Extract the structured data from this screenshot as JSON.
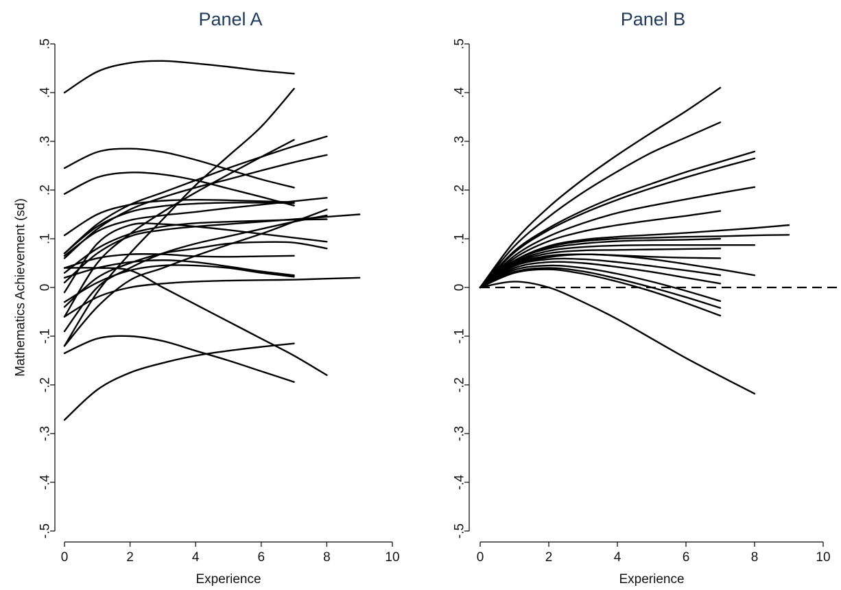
{
  "chart_data": [
    {
      "type": "line",
      "title": "Panel A",
      "xlabel": "Experience",
      "ylabel": "Mathematics Achievement (sd)",
      "xlim": [
        0,
        10
      ],
      "ylim": [
        -0.5,
        0.5
      ],
      "xticks": [
        0,
        2,
        4,
        6,
        8,
        10
      ],
      "xtick_labels": [
        "0",
        "2",
        "4",
        "6",
        "8",
        "10"
      ],
      "yticks": [
        -0.5,
        -0.4,
        -0.3,
        -0.2,
        -0.1,
        0,
        0.1,
        0.2,
        0.3,
        0.4,
        0.5
      ],
      "ytick_labels": [
        "-.5",
        "-.4",
        "-.3",
        "-.2",
        "-.1",
        "0",
        ".1",
        ".2",
        ".3",
        ".4",
        ".5"
      ],
      "grid": false,
      "reference_line": null,
      "series": [
        {
          "x": [
            0,
            1,
            2,
            3,
            4,
            5,
            6,
            7
          ],
          "y": [
            0.4,
            0.443,
            0.461,
            0.465,
            0.46,
            0.453,
            0.445,
            0.439
          ]
        },
        {
          "x": [
            0,
            1,
            2,
            3,
            4,
            5,
            6,
            7
          ],
          "y": [
            0.245,
            0.278,
            0.285,
            0.278,
            0.262,
            0.242,
            0.222,
            0.205
          ]
        },
        {
          "x": [
            0,
            1,
            2,
            3,
            4,
            5,
            6,
            7
          ],
          "y": [
            0.192,
            0.226,
            0.236,
            0.232,
            0.22,
            0.203,
            0.186,
            0.168
          ]
        },
        {
          "x": [
            0,
            1,
            2,
            3,
            4,
            5,
            6,
            7
          ],
          "y": [
            0.107,
            0.15,
            0.17,
            0.178,
            0.18,
            0.179,
            0.177,
            0.175
          ]
        },
        {
          "x": [
            0,
            1,
            2,
            3,
            4,
            5,
            6,
            7
          ],
          "y": [
            0.07,
            0.125,
            0.155,
            0.167,
            0.172,
            0.174,
            0.174,
            0.173
          ]
        },
        {
          "x": [
            0,
            1,
            2,
            3,
            4,
            5,
            6,
            7,
            8
          ],
          "y": [
            0.065,
            0.115,
            0.138,
            0.148,
            0.155,
            0.163,
            0.17,
            0.177,
            0.184
          ]
        },
        {
          "x": [
            0,
            1,
            2,
            3,
            4,
            5,
            6,
            7
          ],
          "y": [
            -0.12,
            -0.01,
            0.07,
            0.14,
            0.21,
            0.27,
            0.33,
            0.408
          ]
        },
        {
          "x": [
            0,
            1,
            2,
            3,
            4,
            5,
            6,
            7
          ],
          "y": [
            -0.06,
            0.05,
            0.11,
            0.155,
            0.195,
            0.232,
            0.268,
            0.303
          ]
        },
        {
          "x": [
            0,
            1,
            2,
            3,
            4,
            5,
            6,
            7,
            8
          ],
          "y": [
            0.07,
            0.13,
            0.17,
            0.195,
            0.22,
            0.245,
            0.268,
            0.29,
            0.31
          ]
        },
        {
          "x": [
            0,
            1,
            2,
            3,
            4,
            5,
            6,
            7,
            8
          ],
          "y": [
            0.06,
            0.12,
            0.16,
            0.185,
            0.205,
            0.222,
            0.24,
            0.257,
            0.272
          ]
        },
        {
          "x": [
            0,
            1,
            2,
            3,
            4,
            5,
            6,
            7,
            8
          ],
          "y": [
            0.03,
            0.08,
            0.11,
            0.125,
            0.132,
            0.135,
            0.137,
            0.139,
            0.14
          ]
        },
        {
          "x": [
            0,
            1,
            2,
            3,
            4,
            5,
            6,
            7,
            8,
            9
          ],
          "y": [
            0.01,
            0.07,
            0.105,
            0.118,
            0.125,
            0.13,
            0.135,
            0.14,
            0.145,
            0.15
          ]
        },
        {
          "x": [
            0,
            1,
            2,
            3,
            4,
            5,
            6,
            7,
            8
          ],
          "y": [
            -0.01,
            0.09,
            0.128,
            0.13,
            0.125,
            0.118,
            0.11,
            0.102,
            0.094
          ]
        },
        {
          "x": [
            0,
            1,
            2,
            3,
            4,
            5,
            6,
            7,
            8
          ],
          "y": [
            -0.04,
            0.02,
            0.05,
            0.07,
            0.08,
            0.09,
            0.093,
            0.092,
            0.08
          ]
        },
        {
          "x": [
            0,
            1,
            2,
            3,
            4,
            5,
            6,
            7
          ],
          "y": [
            0.04,
            0.06,
            0.068,
            0.068,
            0.064,
            0.063,
            0.064,
            0.065
          ]
        },
        {
          "x": [
            0,
            1,
            2,
            3,
            4,
            5,
            6,
            7
          ],
          "y": [
            0.02,
            0.04,
            0.052,
            0.056,
            0.052,
            0.043,
            0.033,
            0.025
          ]
        },
        {
          "x": [
            0,
            1,
            2,
            3,
            4,
            5,
            6,
            7
          ],
          "y": [
            -0.03,
            0.01,
            0.035,
            0.045,
            0.045,
            0.04,
            0.03,
            0.022
          ]
        },
        {
          "x": [
            0,
            1,
            2,
            3,
            4,
            5,
            6,
            7,
            8,
            9
          ],
          "y": [
            -0.06,
            -0.02,
            0.0,
            0.008,
            0.012,
            0.014,
            0.015,
            0.016,
            0.018,
            0.02
          ]
        },
        {
          "x": [
            0,
            1,
            2,
            3,
            4,
            5,
            6,
            7,
            8
          ],
          "y": [
            -0.09,
            0.0,
            0.04,
            0.07,
            0.09,
            0.105,
            0.12,
            0.135,
            0.148
          ]
        },
        {
          "x": [
            0,
            1,
            2,
            3,
            4,
            5,
            6,
            7,
            8
          ],
          "y": [
            -0.12,
            -0.04,
            0.015,
            0.04,
            0.065,
            0.088,
            0.11,
            0.135,
            0.16
          ]
        },
        {
          "x": [
            0,
            1,
            2,
            3,
            4,
            5,
            6,
            7,
            8
          ],
          "y": [
            0.04,
            0.04,
            0.035,
            0.0,
            -0.035,
            -0.07,
            -0.105,
            -0.14,
            -0.18
          ]
        },
        {
          "x": [
            0,
            1,
            2,
            3,
            4,
            5,
            6,
            7
          ],
          "y": [
            -0.135,
            -0.105,
            -0.1,
            -0.11,
            -0.13,
            -0.15,
            -0.172,
            -0.194
          ]
        },
        {
          "x": [
            0,
            1,
            2,
            3,
            4,
            5,
            6,
            7
          ],
          "y": [
            -0.272,
            -0.21,
            -0.175,
            -0.155,
            -0.14,
            -0.13,
            -0.122,
            -0.115
          ]
        }
      ]
    },
    {
      "type": "line",
      "title": "Panel B",
      "xlabel": "Experience",
      "ylabel": "",
      "xlim": [
        0,
        10
      ],
      "ylim": [
        -0.5,
        0.5
      ],
      "xticks": [
        0,
        2,
        4,
        6,
        8,
        10
      ],
      "xtick_labels": [
        "0",
        "2",
        "4",
        "6",
        "8",
        "10"
      ],
      "yticks": [
        -0.5,
        -0.4,
        -0.3,
        -0.2,
        -0.1,
        0,
        0.1,
        0.2,
        0.3,
        0.4,
        0.5
      ],
      "ytick_labels": [
        "-.5",
        "-.4",
        "-.3",
        "-.2",
        "-.1",
        "0",
        ".1",
        ".2",
        ".3",
        ".4",
        ".5"
      ],
      "grid": false,
      "reference_line": {
        "y": 0,
        "style": "dashed"
      },
      "series": [
        {
          "x": [
            0,
            1,
            2,
            3,
            4,
            5,
            6,
            7
          ],
          "y": [
            0,
            0.095,
            0.165,
            0.222,
            0.272,
            0.318,
            0.362,
            0.41
          ]
        },
        {
          "x": [
            0,
            1,
            2,
            3,
            4,
            5,
            6,
            7
          ],
          "y": [
            0,
            0.085,
            0.145,
            0.195,
            0.238,
            0.277,
            0.308,
            0.339
          ]
        },
        {
          "x": [
            0,
            1,
            2,
            3,
            4,
            5,
            6,
            7,
            8
          ],
          "y": [
            0,
            0.075,
            0.122,
            0.158,
            0.188,
            0.213,
            0.237,
            0.258,
            0.279
          ]
        },
        {
          "x": [
            0,
            1,
            2,
            3,
            4,
            5,
            6,
            7,
            8
          ],
          "y": [
            0,
            0.072,
            0.118,
            0.152,
            0.18,
            0.204,
            0.226,
            0.246,
            0.265
          ]
        },
        {
          "x": [
            0,
            1,
            2,
            3,
            4,
            5,
            6,
            7,
            8
          ],
          "y": [
            0,
            0.065,
            0.105,
            0.132,
            0.153,
            0.168,
            0.181,
            0.194,
            0.206
          ]
        },
        {
          "x": [
            0,
            1,
            2,
            3,
            4,
            5,
            6,
            7
          ],
          "y": [
            0,
            0.06,
            0.095,
            0.115,
            0.128,
            0.138,
            0.147,
            0.157
          ]
        },
        {
          "x": [
            0,
            1,
            2,
            3,
            4,
            5,
            6,
            7,
            8,
            9
          ],
          "y": [
            0,
            0.055,
            0.085,
            0.098,
            0.104,
            0.108,
            0.112,
            0.117,
            0.122,
            0.128
          ]
        },
        {
          "x": [
            0,
            1,
            2,
            3,
            4,
            5,
            6,
            7,
            8,
            9
          ],
          "y": [
            0,
            0.055,
            0.083,
            0.095,
            0.1,
            0.102,
            0.104,
            0.105,
            0.107,
            0.108
          ]
        },
        {
          "x": [
            0,
            1,
            2,
            3,
            4,
            5,
            6,
            7
          ],
          "y": [
            0,
            0.055,
            0.08,
            0.09,
            0.095,
            0.097,
            0.098,
            0.1
          ]
        },
        {
          "x": [
            0,
            1,
            2,
            3,
            4,
            5,
            6,
            7,
            8
          ],
          "y": [
            0,
            0.052,
            0.075,
            0.083,
            0.086,
            0.087,
            0.087,
            0.087,
            0.087
          ]
        },
        {
          "x": [
            0,
            1,
            2,
            3,
            4,
            5,
            6,
            7
          ],
          "y": [
            0,
            0.05,
            0.07,
            0.076,
            0.077,
            0.078,
            0.079,
            0.08
          ]
        },
        {
          "x": [
            0,
            1,
            2,
            3,
            4,
            5,
            6,
            7
          ],
          "y": [
            0,
            0.048,
            0.065,
            0.068,
            0.066,
            0.063,
            0.061,
            0.06
          ]
        },
        {
          "x": [
            0,
            1,
            2,
            3,
            4,
            5,
            6,
            7,
            8
          ],
          "y": [
            0,
            0.046,
            0.062,
            0.068,
            0.065,
            0.058,
            0.048,
            0.037,
            0.025
          ]
        },
        {
          "x": [
            0,
            1,
            2,
            3,
            4,
            5,
            6,
            7
          ],
          "y": [
            0,
            0.044,
            0.058,
            0.058,
            0.052,
            0.044,
            0.035,
            0.025
          ]
        },
        {
          "x": [
            0,
            1,
            2,
            3,
            4,
            5,
            6,
            7
          ],
          "y": [
            0,
            0.04,
            0.052,
            0.05,
            0.042,
            0.032,
            0.02,
            0.008
          ]
        },
        {
          "x": [
            0,
            1,
            2,
            3,
            4,
            5,
            6,
            7
          ],
          "y": [
            0,
            0.036,
            0.045,
            0.04,
            0.028,
            0.012,
            -0.007,
            -0.028
          ]
        },
        {
          "x": [
            0,
            1,
            2,
            3,
            4,
            5,
            6,
            7
          ],
          "y": [
            0,
            0.032,
            0.04,
            0.033,
            0.018,
            0.0,
            -0.02,
            -0.042
          ]
        },
        {
          "x": [
            0,
            1,
            2,
            3,
            4,
            5,
            6,
            7
          ],
          "y": [
            0,
            0.03,
            0.037,
            0.028,
            0.012,
            -0.008,
            -0.032,
            -0.058
          ]
        },
        {
          "x": [
            0,
            1,
            2,
            3,
            4,
            5,
            6,
            7,
            8
          ],
          "y": [
            0,
            0.012,
            0.0,
            -0.03,
            -0.065,
            -0.105,
            -0.145,
            -0.182,
            -0.218
          ]
        }
      ]
    }
  ]
}
